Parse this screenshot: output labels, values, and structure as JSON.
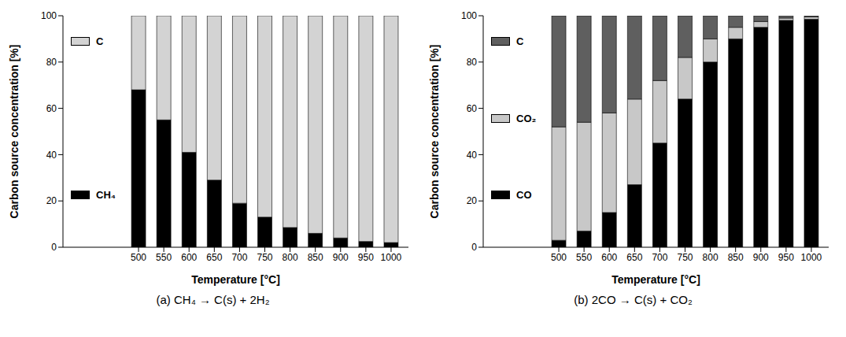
{
  "chart_data": [
    {
      "type": "bar",
      "title": "(a) CH₄ → C(s) + 2H₂",
      "x_label": "Temperature [°C]",
      "y_label": "Carbon source concentration [%]",
      "categories": [
        500,
        550,
        600,
        650,
        700,
        750,
        800,
        850,
        900,
        950,
        1000
      ],
      "series": [
        {
          "name": "CH₄",
          "color": "#000000",
          "values": [
            68,
            55,
            41,
            29,
            19,
            13,
            8.5,
            6,
            4,
            2.5,
            2
          ]
        },
        {
          "name": "C",
          "color": "#d3d3d3",
          "values": [
            32,
            45,
            59,
            71,
            81,
            87,
            91.5,
            94,
            96,
            97.5,
            98
          ]
        }
      ],
      "ylim": [
        0,
        100
      ],
      "yticks": [
        0,
        20,
        40,
        60,
        80,
        100
      ],
      "stacked": true,
      "legend": "left"
    },
    {
      "type": "bar",
      "title": "(b) 2CO → C(s) + CO₂",
      "x_label": "Temperature [°C]",
      "y_label": "Carbon source concentration [%]",
      "categories": [
        500,
        550,
        600,
        650,
        700,
        750,
        800,
        850,
        900,
        950,
        1000
      ],
      "series": [
        {
          "name": "CO",
          "color": "#000000",
          "values": [
            3,
            7,
            15,
            27,
            45,
            64,
            80,
            90,
            95,
            98,
            98.5
          ]
        },
        {
          "name": "CO₂",
          "color": "#c8c8c8",
          "values": [
            49,
            47,
            43,
            37,
            27,
            18,
            10,
            5,
            2.5,
            1,
            1
          ]
        },
        {
          "name": "C",
          "color": "#5f5f5f",
          "values": [
            48,
            46,
            42,
            36,
            28,
            18,
            10,
            5,
            2.5,
            1,
            0.5
          ]
        }
      ],
      "ylim": [
        0,
        100
      ],
      "yticks": [
        0,
        20,
        40,
        60,
        80,
        100
      ],
      "stacked": true,
      "legend": "left"
    }
  ]
}
